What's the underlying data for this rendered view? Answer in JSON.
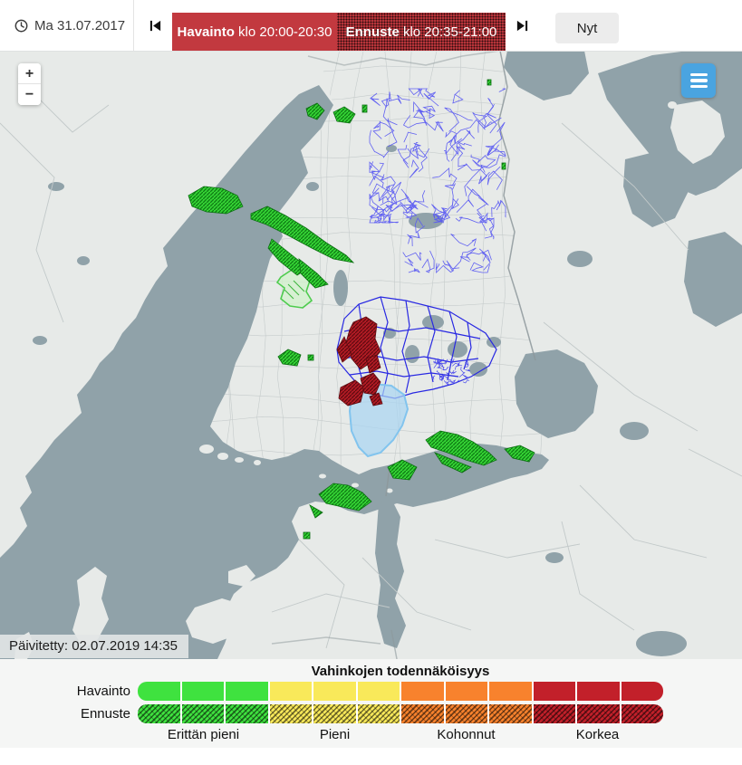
{
  "toolbar": {
    "date": {
      "icon": "clock-icon",
      "label": "Ma 31.07.2017"
    },
    "havainto_button": {
      "prefix": "Havainto",
      "suffix": " klo 20:00-20:30",
      "color": "#c2393f"
    },
    "ennuste_button": {
      "prefix": "Ennuste",
      "suffix": " klo 20:35-21:00",
      "color": "#b8343a"
    },
    "now_button": "Nyt",
    "icons": {
      "previous": "skip-back-icon",
      "next": "skip-forward-icon"
    }
  },
  "map": {
    "updated": "Päivitetty: 02.07.2019 14:35",
    "zoom_in_label": "+",
    "zoom_out_label": "−",
    "menu_icon": "menu-icon",
    "colors": {
      "sea": "#90a2a9",
      "land": "#e7eae8",
      "radar_green": "#35d435",
      "radar_red": "#b21b24",
      "municipality_outline": "#2828e2",
      "power_network": "#5a5af2",
      "highlight_area": "#a8d4f0"
    }
  },
  "legend": {
    "title": "Vahinkojen todennäköisyys",
    "row_labels": [
      "Havainto",
      "Ennuste"
    ],
    "segments_per_category": 3,
    "categories": [
      {
        "label": "Erittän pieni",
        "color": "#3fe23f"
      },
      {
        "label": "Pieni",
        "color": "#f9e95a"
      },
      {
        "label": "Kohonnut",
        "color": "#f8822d"
      },
      {
        "label": "Korkea",
        "color": "#c2202a"
      }
    ]
  }
}
